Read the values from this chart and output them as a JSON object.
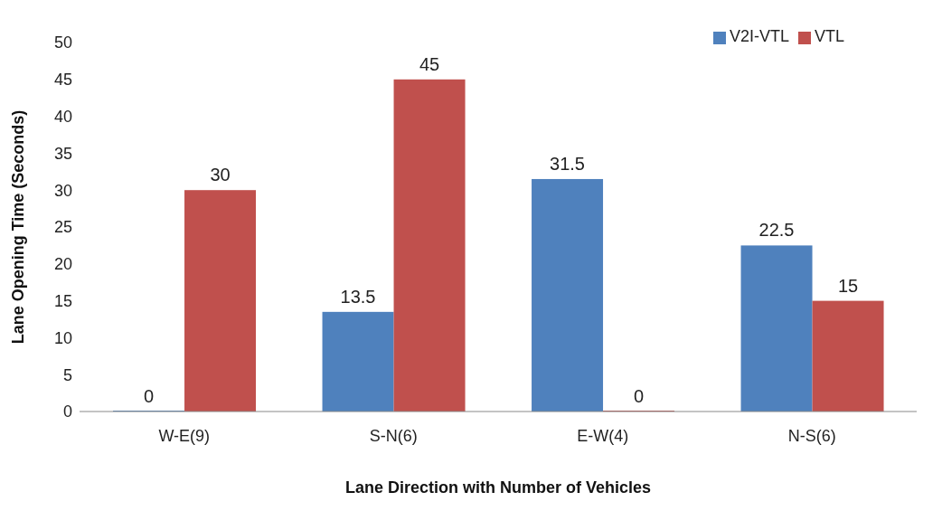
{
  "chart_data": {
    "type": "bar",
    "xlabel": "Lane Direction with Number of Vehicles",
    "ylabel": "Lane Opening Time (Seconds)",
    "categories": [
      "W-E(9)",
      "S-N(6)",
      "E-W(4)",
      "N-S(6)"
    ],
    "series": [
      {
        "name": "V2I-VTL",
        "color": "#4f81bd",
        "values": [
          0,
          13.5,
          31.5,
          22.5
        ]
      },
      {
        "name": "VTL",
        "color": "#c0504d",
        "values": [
          30,
          45,
          0,
          15
        ]
      }
    ],
    "ylim": [
      0,
      50
    ],
    "yticks": [
      0,
      5,
      10,
      15,
      20,
      25,
      30,
      35,
      40,
      45,
      50
    ],
    "grid": false,
    "legend": "top right",
    "data_labels": true
  }
}
